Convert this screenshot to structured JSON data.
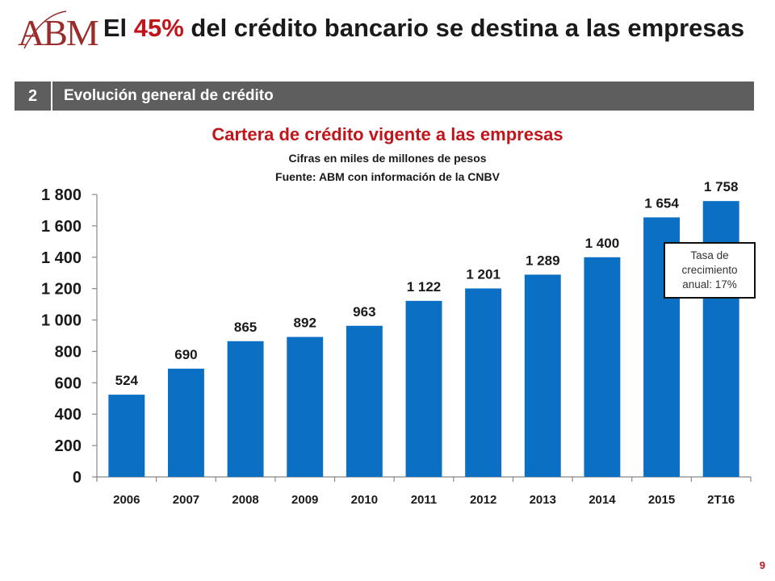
{
  "logo": {
    "text": "ABM"
  },
  "title": {
    "prefix": "El ",
    "highlight": "45%",
    "suffix": " del crédito bancario se destina a las empresas"
  },
  "section": {
    "number": "2",
    "label": "Evolución general de crédito"
  },
  "chart_data": {
    "type": "bar",
    "title": "Cartera de crédito vigente a las empresas",
    "subtitle": "Cifras en miles de millones de pesos",
    "source": "Fuente: ABM con información de la CNBV",
    "categories": [
      "2006",
      "2007",
      "2008",
      "2009",
      "2010",
      "2011",
      "2012",
      "2013",
      "2014",
      "2015",
      "2T16"
    ],
    "values": [
      524,
      690,
      865,
      892,
      963,
      1122,
      1201,
      1289,
      1400,
      1654,
      1758
    ],
    "value_labels": [
      "524",
      "690",
      "865",
      "892",
      "963",
      "1 122",
      "1 201",
      "1 289",
      "1 400",
      "1 654",
      "1 758"
    ],
    "ylim": [
      0,
      1800
    ],
    "yticks": [
      0,
      200,
      400,
      600,
      800,
      1000,
      1200,
      1400,
      1600,
      1800
    ],
    "ytick_labels": [
      "0",
      "200",
      "400",
      "600",
      "800",
      "1 000",
      "1 200",
      "1 400",
      "1 600",
      "1 800"
    ],
    "bar_color": "#0b6fc4",
    "grid": false,
    "annotation": "Tasa de crecimiento anual: 17%"
  },
  "page": {
    "number": "9"
  },
  "colors": {
    "accent": "#c0161b",
    "section_bar": "#5e5e5e",
    "bar": "#0b6fc4"
  }
}
